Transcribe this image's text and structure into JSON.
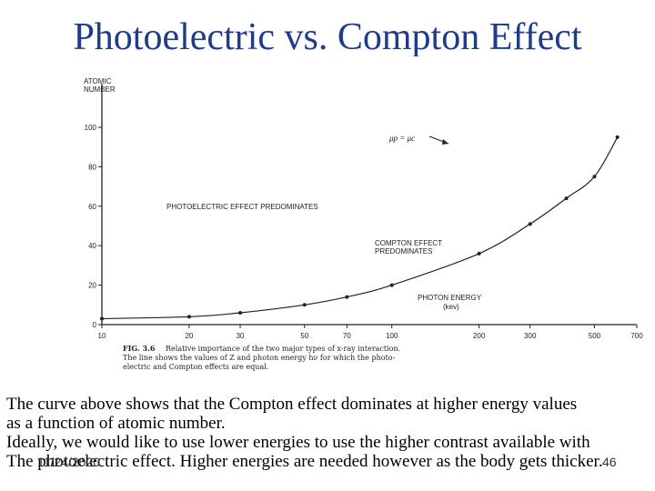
{
  "slide": {
    "title": "Photoelectric vs. Compton Effect",
    "body_lines": [
      "The curve above shows that the Compton effect dominates at higher energy values",
      "as a function of atomic number.",
      "Ideally, we would like to use lower energies to use the higher contrast available with",
      "The photoelectric effect.   Higher energies are needed however as the body gets thicker."
    ],
    "footer_date": "11/24/2020",
    "page_number": "46"
  },
  "colors": {
    "title": "#1f3b8a",
    "figure_ink": "#222222"
  },
  "figure": {
    "caption_bold": "FIG. 3.6",
    "caption_lines": [
      "Relative importance of the two major types of x-ray interaction.",
      "The line shows the values of Z and photon energy hν for which the photo-",
      "electric and Compton effects are equal."
    ],
    "curve_label": "μp = μc",
    "ylabel_lines": [
      "ATOMIC",
      "NUMBER"
    ],
    "xlabel_lines": [
      "PHOTON ENERGY",
      "(kev)"
    ],
    "region_photo": "PHOTOELECTRIC EFFECT PREDOMINATES",
    "region_compton_lines": [
      "COMPTON EFFECT",
      "PREDOMINATES"
    ]
  },
  "chart_data": {
    "type": "line",
    "xscale": "log",
    "xlim": [
      10,
      700
    ],
    "ylim": [
      0,
      100
    ],
    "xticks": [
      10,
      20,
      30,
      50,
      70,
      100,
      200,
      300,
      500,
      700
    ],
    "yticks": [
      0,
      20,
      40,
      60,
      80,
      100
    ],
    "x": [
      10,
      20,
      30,
      50,
      70,
      100,
      200,
      300,
      400,
      500,
      600
    ],
    "y": [
      3,
      4,
      6,
      10,
      14,
      20,
      36,
      51,
      64,
      75,
      95
    ]
  }
}
